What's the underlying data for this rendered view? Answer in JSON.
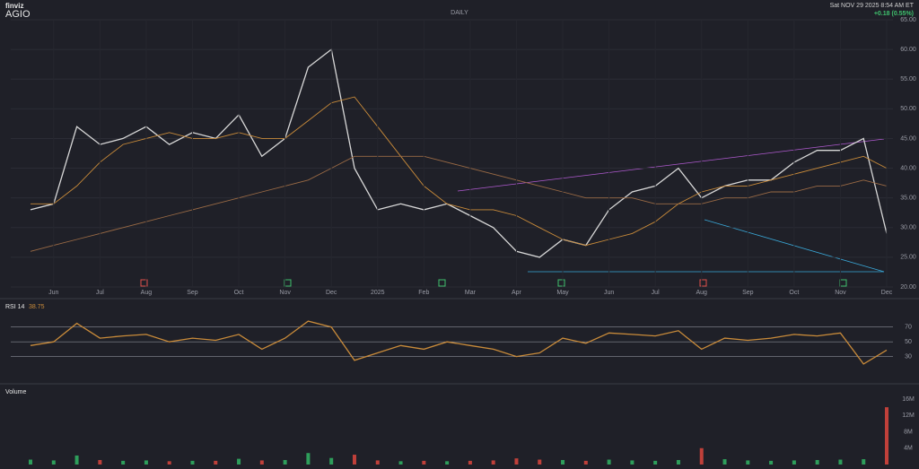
{
  "header": {
    "logo": "finviz",
    "ticker": "AGIO",
    "period": "DAILY",
    "timestamp": "Sat NOV 29 2025 8:54 AM ET",
    "change": "+0.18 (0.55%)"
  },
  "chart_data": [
    {
      "type": "line",
      "categories": [
        null,
        "Jun",
        null,
        "Jul",
        null,
        "Aug",
        null,
        "Sep",
        null,
        "Oct",
        null,
        "Nov",
        null,
        "Dec",
        null,
        "2025",
        null,
        "Feb",
        null,
        "Mar",
        null,
        "Apr",
        null,
        "May",
        null,
        "Jun",
        null,
        "Jul",
        null,
        "Aug",
        null,
        "Sep",
        null,
        "Oct",
        null,
        "Nov",
        null,
        "Dec"
      ],
      "series": [
        {
          "name": "Close",
          "color": "#d8d8d8",
          "values": [
            33,
            34,
            47,
            44,
            45,
            47,
            44,
            46,
            45,
            49,
            42,
            45,
            57,
            60,
            40,
            33,
            34,
            33,
            34,
            32,
            30,
            26,
            25,
            28,
            27,
            33,
            36,
            37,
            40,
            35,
            37,
            38,
            38,
            41,
            43,
            43,
            45,
            29
          ]
        },
        {
          "name": "SMA 50",
          "color": "#c98b3a",
          "values": [
            34,
            34,
            37,
            41,
            44,
            45,
            46,
            45,
            45,
            46,
            45,
            45,
            48,
            51,
            52,
            47,
            42,
            37,
            34,
            33,
            33,
            32,
            30,
            28,
            27,
            28,
            29,
            31,
            34,
            36,
            37,
            37,
            38,
            39,
            40,
            41,
            42,
            40
          ]
        },
        {
          "name": "SMA 200",
          "color": "#9a6a45",
          "values": [
            26,
            27,
            28,
            29,
            30,
            31,
            32,
            33,
            34,
            35,
            36,
            37,
            38,
            40,
            42,
            42,
            42,
            42,
            41,
            40,
            39,
            38,
            37,
            36,
            35,
            35,
            35,
            34,
            34,
            34,
            35,
            35,
            36,
            36,
            37,
            37,
            38,
            37
          ]
        }
      ],
      "ylim": [
        20,
        65
      ],
      "yticks": [
        {
          "value": 20,
          "label": "20.00"
        },
        {
          "value": 25,
          "label": "25.00"
        },
        {
          "value": 30,
          "label": "30.00"
        },
        {
          "value": 35,
          "label": "35.00"
        },
        {
          "value": 40,
          "label": "40.00"
        },
        {
          "value": 45,
          "label": "45.00"
        },
        {
          "value": 50,
          "label": "50.00"
        },
        {
          "value": 55,
          "label": "55.00"
        },
        {
          "value": 60,
          "label": "60.00"
        },
        {
          "value": 65,
          "label": "65.00"
        }
      ],
      "grid": true
    },
    {
      "type": "line",
      "title": "RSI 14",
      "series": [
        {
          "name": "RSI",
          "color": "#c98b3a",
          "values": [
            45,
            50,
            75,
            55,
            58,
            60,
            50,
            55,
            52,
            60,
            40,
            55,
            78,
            70,
            25,
            35,
            45,
            40,
            50,
            45,
            40,
            30,
            35,
            55,
            48,
            62,
            60,
            58,
            65,
            40,
            55,
            52,
            55,
            60,
            58,
            62,
            20,
            38.75
          ]
        }
      ],
      "ylim": [
        15,
        100
      ],
      "yticks": [
        30,
        50,
        70
      ]
    },
    {
      "type": "bar",
      "title": "Volume",
      "values": [
        1.2,
        1.0,
        2.2,
        1.1,
        0.9,
        1.0,
        0.8,
        0.9,
        0.9,
        1.4,
        1.0,
        1.1,
        2.8,
        1.6,
        2.4,
        1.0,
        0.8,
        0.9,
        0.8,
        0.9,
        1.0,
        1.5,
        1.2,
        1.1,
        0.9,
        1.2,
        1.0,
        0.9,
        1.1,
        4.0,
        1.3,
        1.0,
        0.9,
        1.0,
        1.1,
        1.2,
        1.3,
        14
      ],
      "ylim": [
        0,
        16
      ],
      "yticks": [
        {
          "value": 4,
          "label": "4M"
        },
        {
          "value": 8,
          "label": "8M"
        },
        {
          "value": 12,
          "label": "12M"
        },
        {
          "value": 16,
          "label": "16M"
        }
      ]
    }
  ]
}
